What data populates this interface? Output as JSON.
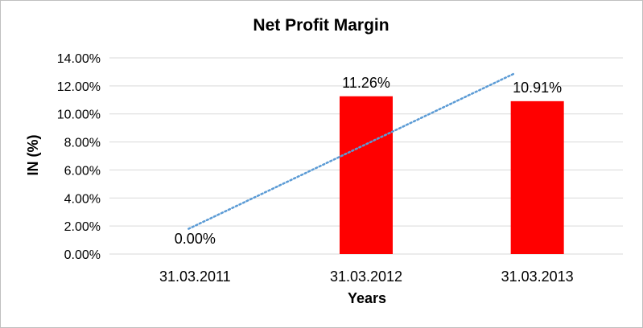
{
  "chart_data": {
    "type": "bar",
    "title": "Net Profit Margin",
    "xlabel": "Years",
    "ylabel": "IN (%)",
    "categories": [
      "31.03.2011",
      "31.03.2012",
      "31.03.2013"
    ],
    "values": [
      0.0,
      11.26,
      10.91
    ],
    "data_labels": [
      "0.00%",
      "11.26%",
      "10.91%"
    ],
    "ylim": [
      0,
      14
    ],
    "y_ticks": [
      0,
      2,
      4,
      6,
      8,
      10,
      12,
      14
    ],
    "y_tick_labels": [
      "0.00%",
      "2.00%",
      "4.00%",
      "6.00%",
      "8.00%",
      "10.00%",
      "12.00%",
      "14.00%"
    ],
    "grid": true,
    "legend": "none",
    "trendline": {
      "type": "linear",
      "style": "dotted",
      "start": 1.8,
      "end": 12.9
    },
    "colors": {
      "bar": "#ff0000",
      "trendline": "#5b9bd5",
      "grid": "#d9d9d9"
    }
  }
}
